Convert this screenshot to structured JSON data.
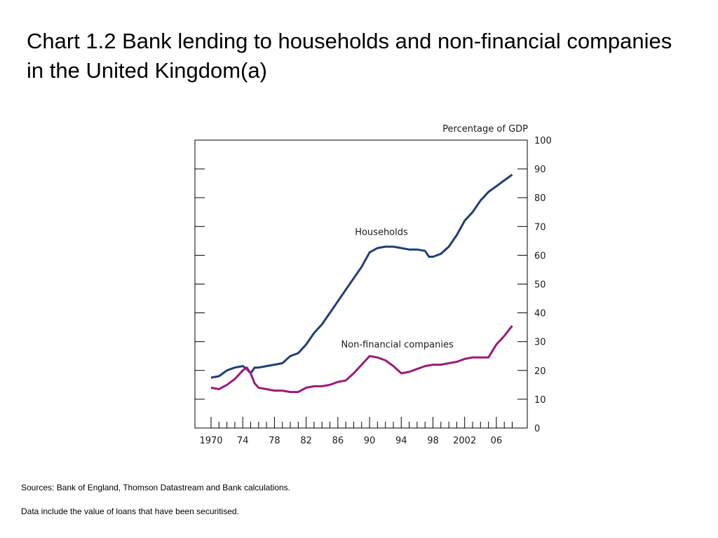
{
  "slide": {
    "title": "Chart 1.2  Bank lending to households and non-financial companies in the United Kingdom(a)",
    "sources": "Sources:  Bank of England, Thomson Datastream and Bank calculations.",
    "note": "Data include the value of loans that have been securitised."
  },
  "chart_data": {
    "type": "line",
    "ylabel": "Percentage of GDP",
    "ylim": [
      0,
      100
    ],
    "xlim": [
      1970,
      2009
    ],
    "y_ticks": [
      0,
      10,
      20,
      30,
      40,
      50,
      60,
      70,
      80,
      90,
      100
    ],
    "x_tick_labels": [
      {
        "year": 1970,
        "label": "1970"
      },
      {
        "year": 1974,
        "label": "74"
      },
      {
        "year": 1978,
        "label": "78"
      },
      {
        "year": 1982,
        "label": "82"
      },
      {
        "year": 1986,
        "label": "86"
      },
      {
        "year": 1990,
        "label": "90"
      },
      {
        "year": 1994,
        "label": "94"
      },
      {
        "year": 1998,
        "label": "98"
      },
      {
        "year": 2002,
        "label": "2002"
      },
      {
        "year": 2006,
        "label": "06"
      }
    ],
    "series": [
      {
        "name": "Households",
        "color": "#1f3f73",
        "x": [
          1970,
          1971,
          1972,
          1973,
          1974,
          1974.5,
          1975,
          1975.5,
          1976,
          1977,
          1978,
          1979,
          1980,
          1981,
          1982,
          1983,
          1984,
          1985,
          1986,
          1987,
          1988,
          1989,
          1990,
          1991,
          1992,
          1993,
          1994,
          1995,
          1996,
          1997,
          1997.5,
          1998,
          1999,
          2000,
          2001,
          2002,
          2003,
          2004,
          2005,
          2006,
          2007,
          2008
        ],
        "values": [
          17.5,
          18,
          20,
          21,
          21.5,
          20.5,
          19,
          21,
          21,
          21.5,
          22,
          22.5,
          25,
          26,
          29,
          33,
          36,
          40,
          44,
          48,
          52,
          56,
          61,
          62.5,
          63,
          63,
          62.5,
          62,
          62,
          61.5,
          59.5,
          59.5,
          60.5,
          63,
          67,
          72,
          75,
          79,
          82,
          84,
          86,
          88
        ]
      },
      {
        "name": "Non-financial companies",
        "color": "#9c1a78",
        "x": [
          1970,
          1971,
          1972,
          1973,
          1974,
          1974.5,
          1975,
          1975.5,
          1976,
          1977,
          1978,
          1979,
          1980,
          1981,
          1982,
          1983,
          1984,
          1985,
          1986,
          1987,
          1988,
          1989,
          1990,
          1991,
          1992,
          1993,
          1994,
          1995,
          1996,
          1997,
          1998,
          1999,
          2000,
          2001,
          2002,
          2003,
          2004,
          2005,
          2006,
          2007,
          2008
        ],
        "values": [
          14,
          13.5,
          15,
          17,
          20,
          21,
          19,
          15.5,
          14,
          13.5,
          13,
          13,
          12.5,
          12.5,
          14,
          14.5,
          14.5,
          15,
          16,
          16.5,
          19,
          22,
          25,
          24.5,
          23.5,
          21.5,
          19,
          19.5,
          20.5,
          21.5,
          22,
          22,
          22.5,
          23,
          24,
          24.5,
          24.5,
          24.5,
          29,
          32,
          35.5
        ]
      }
    ],
    "annotations": [
      {
        "text": "Households",
        "x": 1991.5,
        "y": 67
      },
      {
        "text": "Non-financial companies",
        "x": 1993.5,
        "y": 28
      }
    ]
  }
}
